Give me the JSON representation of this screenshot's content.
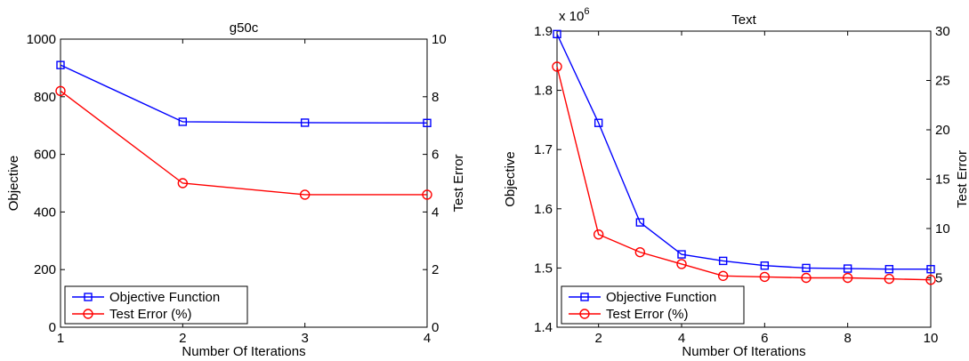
{
  "chart_data": [
    {
      "type": "line",
      "title": "g50c",
      "xlabel": "Number Of Iterations",
      "ylabel": "Objective",
      "ylabel_right": "Test Error",
      "x": [
        1,
        2,
        3,
        4
      ],
      "xlim": [
        1,
        4
      ],
      "xticks": [
        "1",
        "2",
        "3",
        "4"
      ],
      "ylim": [
        0,
        1000
      ],
      "yticks": [
        "0",
        "200",
        "400",
        "600",
        "800",
        "1000"
      ],
      "ylim_right": [
        0,
        10
      ],
      "yticks_right": [
        "0",
        "2",
        "4",
        "6",
        "8",
        "10"
      ],
      "multiplier": "",
      "legend_position": "bottom-left",
      "grid": false,
      "series": [
        {
          "name": "Objective Function",
          "axis": "left",
          "color": "#0000ff",
          "marker": "square",
          "values": [
            910,
            713,
            710,
            709
          ]
        },
        {
          "name": "Test Error (%)",
          "axis": "right",
          "color": "#ff0000",
          "marker": "circle",
          "values": [
            8.2,
            5.0,
            4.6,
            4.6
          ]
        }
      ]
    },
    {
      "type": "line",
      "title": "Text",
      "xlabel": "Number Of Iterations",
      "ylabel": "Objective",
      "ylabel_right": "Test Error",
      "x": [
        1,
        2,
        3,
        4,
        5,
        6,
        7,
        8,
        9,
        10
      ],
      "xlim": [
        1,
        10
      ],
      "xticks": [
        "2",
        "4",
        "6",
        "8",
        "10"
      ],
      "ylim": [
        1.4,
        1.9
      ],
      "yticks": [
        "1.4",
        "1.5",
        "1.6",
        "1.7",
        "1.8",
        "1.9"
      ],
      "ylim_right": [
        0,
        30
      ],
      "yticks_right": [
        "5",
        "10",
        "15",
        "20",
        "25",
        "30"
      ],
      "multiplier": "x 10",
      "multiplier_exp": "6",
      "legend_position": "bottom-left",
      "grid": false,
      "series": [
        {
          "name": "Objective Function",
          "axis": "left",
          "color": "#0000ff",
          "marker": "square",
          "values": [
            1.895,
            1.745,
            1.577,
            1.523,
            1.512,
            1.504,
            1.5,
            1.499,
            1.498,
            1.498
          ]
        },
        {
          "name": "Test Error (%)",
          "axis": "right",
          "color": "#ff0000",
          "marker": "circle",
          "values": [
            26.4,
            9.4,
            7.6,
            6.4,
            5.2,
            5.1,
            5.0,
            5.0,
            4.9,
            4.8
          ]
        }
      ]
    }
  ]
}
